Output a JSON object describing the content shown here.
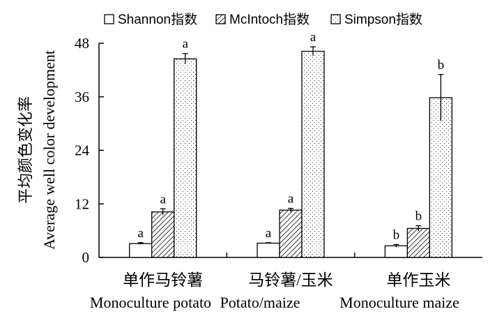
{
  "chart_data": {
    "type": "bar",
    "ylabel_cn": "平均颜色变化率",
    "ylabel_en": "Average well color development",
    "ylim": [
      0,
      48
    ],
    "yticks": [
      0,
      12,
      24,
      36,
      48
    ],
    "grid": false,
    "legend_position": "top",
    "categories": [
      {
        "cn": "单作马铃薯",
        "en": "Monoculture potato"
      },
      {
        "cn": "马铃薯/玉米",
        "en": "Potato/maize"
      },
      {
        "cn": "单作玉米",
        "en": "Monoculture maize"
      }
    ],
    "series": [
      {
        "name": "Shannon指数",
        "pattern": "white",
        "values": [
          3.1,
          3.2,
          2.6
        ],
        "errors": [
          0.2,
          0.1,
          0.3
        ],
        "letters": [
          "a",
          "a",
          "b"
        ]
      },
      {
        "name": "McIntoch指数",
        "pattern": "hatch",
        "values": [
          10.2,
          10.6,
          6.5
        ],
        "errors": [
          0.7,
          0.4,
          0.6
        ],
        "letters": [
          "a",
          "a",
          "b"
        ]
      },
      {
        "name": "Simpson指数",
        "pattern": "dots",
        "values": [
          44.5,
          46.2,
          35.8
        ],
        "errors": [
          1.2,
          1.0,
          5.2
        ],
        "letters": [
          "a",
          "a",
          "b"
        ]
      }
    ]
  }
}
